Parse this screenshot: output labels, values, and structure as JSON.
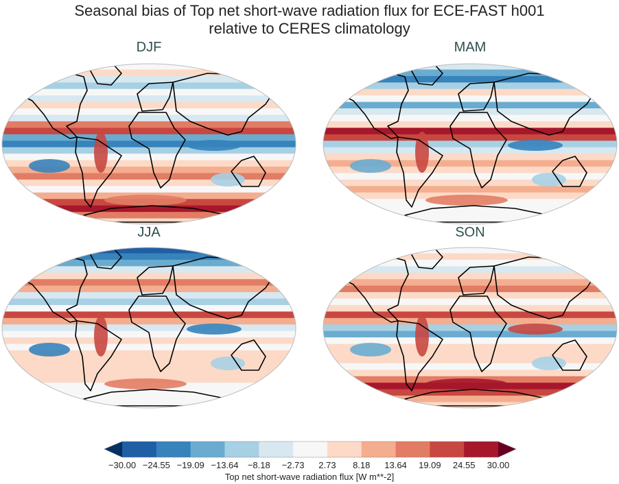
{
  "title": {
    "line1": "Seasonal bias of Top net short-wave radiation flux for ECE-FAST h001",
    "line2": "relative to CERES climatology"
  },
  "panels": [
    {
      "label": "DJF"
    },
    {
      "label": "MAM"
    },
    {
      "label": "JJA"
    },
    {
      "label": "SON"
    }
  ],
  "colorbar": {
    "label": "Top net short-wave radiation flux [W m**-2]",
    "ticks": [
      "−30.00",
      "−24.55",
      "−19.09",
      "−13.64",
      "−8.18",
      "−2.73",
      "2.73",
      "8.18",
      "13.64",
      "19.09",
      "24.55",
      "30.00"
    ],
    "colors": [
      "#1f5fa5",
      "#3783bb",
      "#6aacd0",
      "#a7d0e4",
      "#d7e8f1",
      "#f7f7f7",
      "#fcdac7",
      "#f4ae8f",
      "#e27c64",
      "#c84741",
      "#a6172b"
    ],
    "extend_low_color": "#053061",
    "extend_high_color": "#67001f",
    "colormap": "RdBu_r"
  }
}
